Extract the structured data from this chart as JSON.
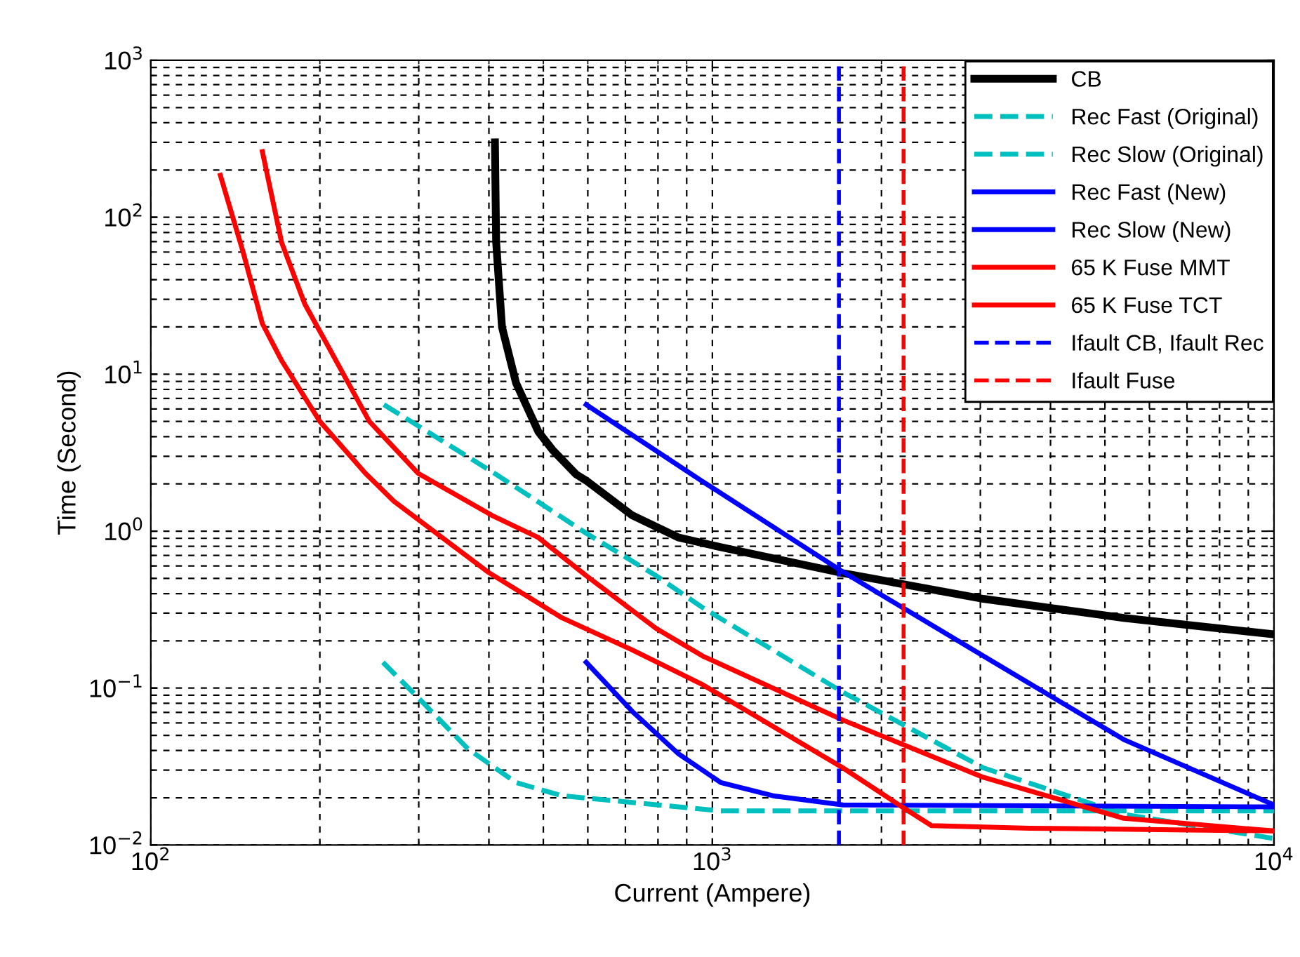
{
  "chart_data": {
    "type": "line",
    "xlabel": "Current (Ampere)",
    "ylabel": "Time (Second)",
    "log": "xy",
    "grid": true,
    "legend": "top right",
    "xlim": [
      100,
      10000
    ],
    "ylim": [
      0.01,
      1000
    ],
    "xticks": [
      {
        "value": 100,
        "label": "10$^{2}$"
      },
      {
        "value": 1000,
        "label": "10$^{3}$"
      },
      {
        "value": 10000,
        "label": "10$^{4}$"
      }
    ],
    "yticks": [
      {
        "value": 0.01,
        "label": "10$^{−2}$"
      },
      {
        "value": 0.1,
        "label": "10$^{−1}$"
      },
      {
        "value": 1,
        "label": "10$^{0}$"
      },
      {
        "value": 10,
        "label": "10$^{1}$"
      },
      {
        "value": 100,
        "label": "10$^{2}$"
      },
      {
        "value": 1000,
        "label": "10$^{3}$"
      }
    ],
    "series": [
      {
        "name": "CB",
        "color": "#000000",
        "line_style": "solid",
        "x": [
          410,
          412,
          422,
          447,
          490,
          519,
          572,
          596,
          720,
          871,
          1035,
          1708,
          3038,
          5402,
          10000
        ],
        "values": [
          300,
          70,
          20,
          8.8,
          4.3,
          3.3,
          2.3,
          2.1,
          1.26,
          0.91,
          0.79,
          0.54,
          0.37,
          0.28,
          0.22
        ]
      },
      {
        "name": "Rec Fast (Original)",
        "color": "#00bfbf",
        "line_style": "dashed",
        "x": [
          259,
          304,
          367,
          447,
          540,
          653,
          1035,
          10000
        ],
        "values": [
          0.146,
          0.082,
          0.041,
          0.025,
          0.0206,
          0.0193,
          0.0165,
          0.0165
        ]
      },
      {
        "name": "Rec Slow (Original)",
        "color": "#00bfbf",
        "line_style": "dashed",
        "x": [
          260,
          412,
          596,
          794,
          961,
          1708,
          2278,
          3038,
          5402,
          10000
        ],
        "values": [
          6.4,
          2.3,
          0.97,
          0.52,
          0.325,
          0.094,
          0.054,
          0.031,
          0.0157,
          0.011
        ]
      },
      {
        "name": "Rec Fast (New)",
        "color": "#0000ff",
        "line_style": "solid",
        "x": [
          596,
          720,
          871,
          1035,
          1282,
          1708,
          10000
        ],
        "values": [
          0.146,
          0.071,
          0.038,
          0.025,
          0.0206,
          0.018,
          0.0175
        ]
      },
      {
        "name": "Rec Slow (New)",
        "color": "#0000ff",
        "line_style": "solid",
        "x": [
          596,
          961,
          1708,
          3038,
          5402,
          10000
        ],
        "values": [
          6.4,
          2.07,
          0.55,
          0.16,
          0.047,
          0.018
        ]
      },
      {
        "name": "65 K Fuse MMT",
        "color": "#ff0000",
        "line_style": "solid",
        "x": [
          133,
          146,
          158,
          171,
          200,
          241,
          271,
          398,
          540,
          720,
          961,
          1708,
          2150,
          2455,
          3673,
          10000
        ],
        "values": [
          185,
          60,
          21,
          12.2,
          5.0,
          2.34,
          1.55,
          0.55,
          0.28,
          0.175,
          0.105,
          0.031,
          0.018,
          0.0133,
          0.0128,
          0.0123
        ]
      },
      {
        "name": "65 K Fuse TCT",
        "color": "#ff0000",
        "line_style": "solid",
        "x": [
          158,
          171,
          188,
          207,
          245,
          299,
          405,
          490,
          596,
          794,
          961,
          1708,
          3038,
          5402,
          10000
        ],
        "values": [
          262,
          69,
          28,
          15,
          5.0,
          2.34,
          1.26,
          0.91,
          0.52,
          0.24,
          0.16,
          0.0625,
          0.027,
          0.0148,
          0.0123
        ]
      },
      {
        "name": "Ifault CB, Ifault Rec",
        "color": "#0000ff",
        "line_style": "dashed",
        "x": [
          1680,
          1680
        ],
        "values": [
          0.01,
          1000
        ]
      },
      {
        "name": "Ifault Fuse",
        "color": "#ff0000",
        "line_style": "dashed",
        "x": [
          2190,
          2190
        ],
        "values": [
          0.01,
          1000
        ]
      }
    ]
  }
}
